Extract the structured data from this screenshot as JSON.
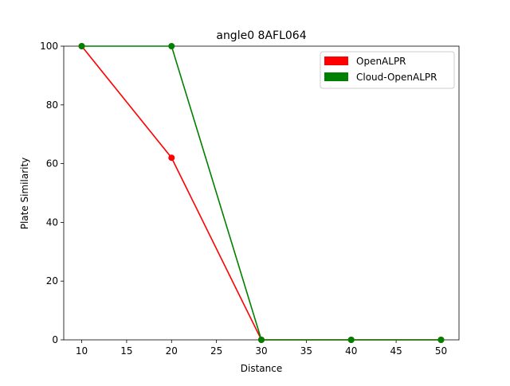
{
  "chart_data": {
    "type": "line",
    "title": "angle0 8AFL064",
    "xlabel": "Distance",
    "ylabel": "Plate Similarity",
    "xlim": [
      8,
      52
    ],
    "ylim": [
      0,
      100
    ],
    "xticks": [
      10,
      15,
      20,
      25,
      30,
      35,
      40,
      45,
      50
    ],
    "yticks": [
      0,
      20,
      40,
      60,
      80,
      100
    ],
    "grid": false,
    "legend_position": "top-right",
    "series": [
      {
        "name": "OpenALPR",
        "color": "#ff0000",
        "x": [
          10,
          20,
          30,
          40,
          50
        ],
        "y": [
          100,
          62,
          0,
          0,
          0
        ]
      },
      {
        "name": "Cloud-OpenALPR",
        "color": "#008000",
        "x": [
          10,
          20,
          30,
          40,
          50
        ],
        "y": [
          100,
          100,
          0,
          0,
          0
        ]
      }
    ]
  }
}
